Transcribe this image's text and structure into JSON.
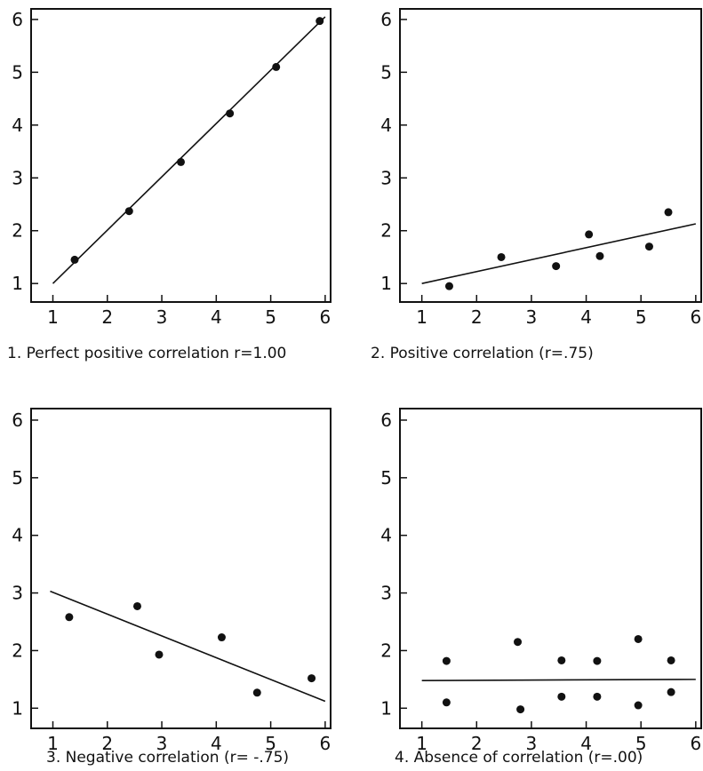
{
  "chart_data": [
    {
      "type": "scatter",
      "caption": "1. Perfect positive correlation r=1.00",
      "xlim": [
        0.6,
        6.1
      ],
      "ylim": [
        0.65,
        6.2
      ],
      "xticks": [
        1,
        2,
        3,
        4,
        5,
        6
      ],
      "yticks": [
        1,
        2,
        3,
        4,
        5,
        6
      ],
      "grid": false,
      "points": [
        [
          1.4,
          1.45
        ],
        [
          2.4,
          2.37
        ],
        [
          3.35,
          3.3
        ],
        [
          4.25,
          4.22
        ],
        [
          5.1,
          5.1
        ],
        [
          5.9,
          5.97
        ]
      ],
      "trend_line": [
        [
          1.0,
          1.0
        ],
        [
          6.0,
          6.05
        ]
      ]
    },
    {
      "type": "scatter",
      "caption": "2. Positive correlation (r=.75)",
      "xlim": [
        0.6,
        6.1
      ],
      "ylim": [
        0.65,
        6.2
      ],
      "xticks": [
        1,
        2,
        3,
        4,
        5,
        6
      ],
      "yticks": [
        1,
        2,
        3,
        4,
        5,
        6
      ],
      "grid": false,
      "points": [
        [
          1.5,
          0.95
        ],
        [
          2.45,
          1.5
        ],
        [
          3.45,
          1.33
        ],
        [
          4.05,
          1.93
        ],
        [
          4.25,
          1.52
        ],
        [
          5.15,
          1.7
        ],
        [
          5.5,
          2.35
        ]
      ],
      "trend_line": [
        [
          1.0,
          1.0
        ],
        [
          6.0,
          2.13
        ]
      ]
    },
    {
      "type": "scatter",
      "caption": "3. Negative correlation (r= -.75)",
      "xlim": [
        0.6,
        6.1
      ],
      "ylim": [
        0.65,
        6.2
      ],
      "xticks": [
        1,
        2,
        3,
        4,
        5,
        6
      ],
      "yticks": [
        1,
        2,
        3,
        4,
        5,
        6
      ],
      "grid": false,
      "points": [
        [
          1.3,
          2.58
        ],
        [
          2.55,
          2.77
        ],
        [
          2.95,
          1.93
        ],
        [
          4.1,
          2.23
        ],
        [
          4.75,
          1.27
        ],
        [
          5.75,
          1.52
        ]
      ],
      "trend_line": [
        [
          0.95,
          3.03
        ],
        [
          6.0,
          1.12
        ]
      ]
    },
    {
      "type": "scatter",
      "caption": "4. Absence of correlation (r=.00)",
      "xlim": [
        0.6,
        6.1
      ],
      "ylim": [
        0.65,
        6.2
      ],
      "xticks": [
        1,
        2,
        3,
        4,
        5,
        6
      ],
      "yticks": [
        1,
        2,
        3,
        4,
        5,
        6
      ],
      "grid": false,
      "points": [
        [
          1.45,
          1.82
        ],
        [
          1.45,
          1.1
        ],
        [
          2.75,
          2.15
        ],
        [
          2.8,
          0.98
        ],
        [
          3.55,
          1.83
        ],
        [
          3.55,
          1.2
        ],
        [
          4.2,
          1.82
        ],
        [
          4.2,
          1.2
        ],
        [
          4.95,
          2.2
        ],
        [
          4.95,
          1.05
        ],
        [
          5.55,
          1.83
        ],
        [
          5.55,
          1.28
        ]
      ],
      "trend_line": [
        [
          1.0,
          1.48
        ],
        [
          6.0,
          1.5
        ]
      ]
    }
  ],
  "colors": {
    "ink": "#111111",
    "background": "#ffffff"
  }
}
